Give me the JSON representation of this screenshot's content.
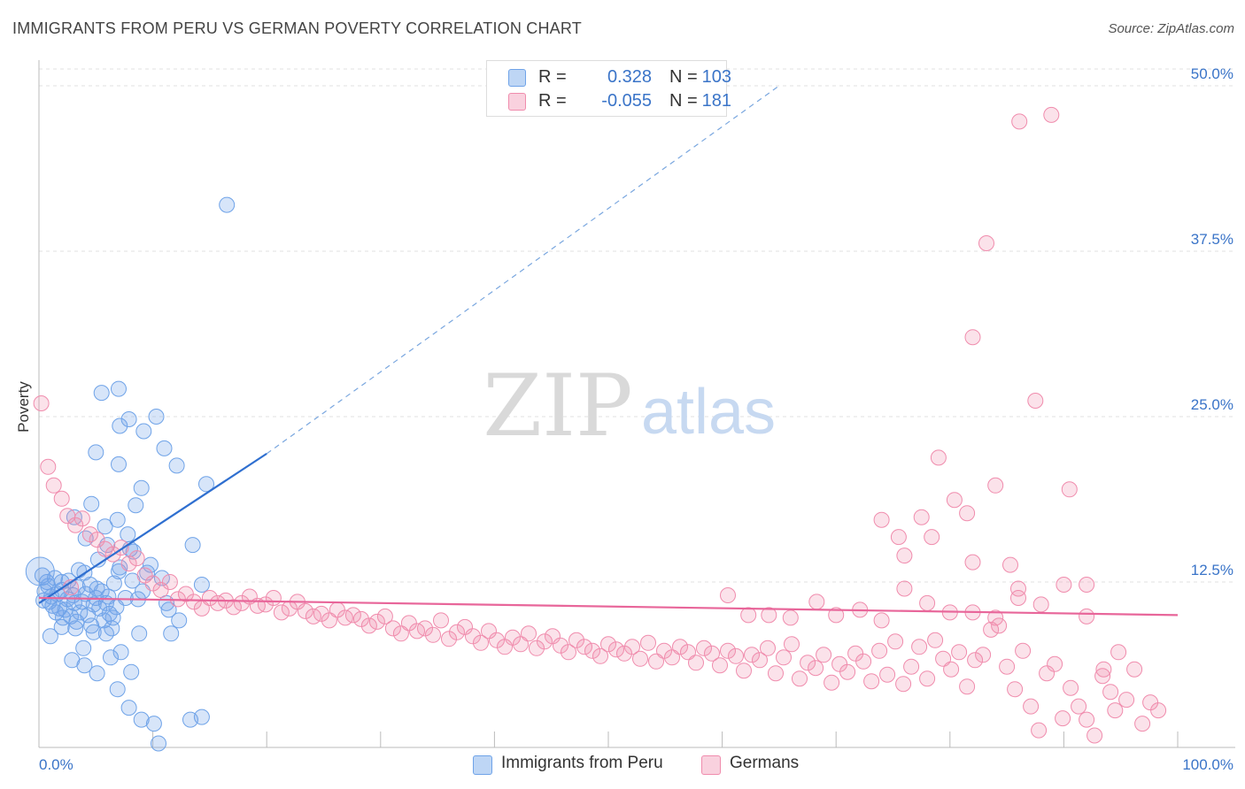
{
  "header": {
    "title": "IMMIGRANTS FROM PERU VS GERMAN POVERTY CORRELATION CHART",
    "source": "Source: ZipAtlas.com"
  },
  "watermark": {
    "zip": "ZIP",
    "atlas": "atlas"
  },
  "legend": {
    "r_label": "R =",
    "n_label": "N =",
    "rows": [
      {
        "name": "Immigrants from Peru",
        "r": "0.328",
        "n": "103",
        "color": "#6fa3e8"
      },
      {
        "name": "Germans",
        "r": "-0.055",
        "n": "181",
        "color": "#f08cad"
      }
    ]
  },
  "bottom_legend": [
    "Immigrants from Peru",
    "Germans"
  ],
  "chart_data": {
    "type": "scatter",
    "title": "IMMIGRANTS FROM PERU VS GERMAN POVERTY CORRELATION CHART",
    "xlabel": "",
    "ylabel": "Poverty",
    "xlim": [
      0,
      100
    ],
    "ylim": [
      0,
      50
    ],
    "x_tick_labels": [
      "0.0%",
      "100.0%"
    ],
    "y_ticks": [
      12.5,
      25.0,
      37.5,
      50.0
    ],
    "y_tick_labels": [
      "12.5%",
      "25.0%",
      "37.5%",
      "50.0%"
    ],
    "grid": true,
    "series": [
      {
        "name": "Immigrants from Peru",
        "color": "#6fa3e8",
        "fill": "rgba(111,163,232,0.28)",
        "stroke": "#6fa3e8",
        "trend": {
          "x": [
            0,
            20
          ],
          "y": [
            10.9,
            22.2
          ],
          "dashed_extension_to": [
            65,
            50
          ]
        },
        "points": [
          [
            0.3,
            13.0
          ],
          [
            0.5,
            11.8
          ],
          [
            0.7,
            12.5
          ],
          [
            0.9,
            11.0
          ],
          [
            1.1,
            11.4
          ],
          [
            1.2,
            10.7
          ],
          [
            1.4,
            12.8
          ],
          [
            1.6,
            11.6
          ],
          [
            1.8,
            10.5
          ],
          [
            2.0,
            11.9
          ],
          [
            2.1,
            9.8
          ],
          [
            2.3,
            10.4
          ],
          [
            2.5,
            11.2
          ],
          [
            2.6,
            12.6
          ],
          [
            2.8,
            9.9
          ],
          [
            3.0,
            11.5
          ],
          [
            3.1,
            10.9
          ],
          [
            3.3,
            9.5
          ],
          [
            3.4,
            12.1
          ],
          [
            3.6,
            10.2
          ],
          [
            3.8,
            11.0
          ],
          [
            4.0,
            13.2
          ],
          [
            4.1,
            11.6
          ],
          [
            4.3,
            10.0
          ],
          [
            4.5,
            12.3
          ],
          [
            4.6,
            9.2
          ],
          [
            4.8,
            10.8
          ],
          [
            5.0,
            11.3
          ],
          [
            5.1,
            12.0
          ],
          [
            5.3,
            10.5
          ],
          [
            5.5,
            11.8
          ],
          [
            5.7,
            9.6
          ],
          [
            5.9,
            10.9
          ],
          [
            6.1,
            11.4
          ],
          [
            6.2,
            10.1
          ],
          [
            6.4,
            9.0
          ],
          [
            6.6,
            12.4
          ],
          [
            6.8,
            10.6
          ],
          [
            7.0,
            13.3
          ],
          [
            1.0,
            8.4
          ],
          [
            2.0,
            12.5
          ],
          [
            3.5,
            13.4
          ],
          [
            5.2,
            14.2
          ],
          [
            6.0,
            15.3
          ],
          [
            7.1,
            13.6
          ],
          [
            8.3,
            14.8
          ],
          [
            4.1,
            15.8
          ],
          [
            5.8,
            16.7
          ],
          [
            6.9,
            17.2
          ],
          [
            7.8,
            16.1
          ],
          [
            4.6,
            18.4
          ],
          [
            8.5,
            18.3
          ],
          [
            3.1,
            17.4
          ],
          [
            5.0,
            22.3
          ],
          [
            7.1,
            24.3
          ],
          [
            7.9,
            24.8
          ],
          [
            9.2,
            23.9
          ],
          [
            10.3,
            25.0
          ],
          [
            11.0,
            22.6
          ],
          [
            12.1,
            21.3
          ],
          [
            9.0,
            19.6
          ],
          [
            7.0,
            21.4
          ],
          [
            8.0,
            15.0
          ],
          [
            9.8,
            13.8
          ],
          [
            10.8,
            12.8
          ],
          [
            5.5,
            26.8
          ],
          [
            7.0,
            27.1
          ],
          [
            13.5,
            15.3
          ],
          [
            14.7,
            19.9
          ],
          [
            14.3,
            12.3
          ],
          [
            16.5,
            41.0
          ],
          [
            11.2,
            10.9
          ],
          [
            11.4,
            10.4
          ],
          [
            12.3,
            9.6
          ],
          [
            11.6,
            8.6
          ],
          [
            8.8,
            8.6
          ],
          [
            7.2,
            7.2
          ],
          [
            4.8,
            8.7
          ],
          [
            3.2,
            9.0
          ],
          [
            2.9,
            6.6
          ],
          [
            4.0,
            6.2
          ],
          [
            5.1,
            5.6
          ],
          [
            6.9,
            4.4
          ],
          [
            7.9,
            3.0
          ],
          [
            9.0,
            2.1
          ],
          [
            10.1,
            1.8
          ],
          [
            10.5,
            0.3
          ],
          [
            13.3,
            2.1
          ],
          [
            14.3,
            2.3
          ],
          [
            8.1,
            5.7
          ],
          [
            8.7,
            11.2
          ],
          [
            7.6,
            11.3
          ],
          [
            9.1,
            11.8
          ],
          [
            6.5,
            9.8
          ],
          [
            5.9,
            8.6
          ],
          [
            2.0,
            9.1
          ],
          [
            1.5,
            10.2
          ],
          [
            0.8,
            12.2
          ],
          [
            3.9,
            7.5
          ],
          [
            6.3,
            6.8
          ],
          [
            8.2,
            12.6
          ],
          [
            9.5,
            13.2
          ],
          [
            0.4,
            11.1
          ]
        ]
      },
      {
        "name": "Germans",
        "color": "#f08cad",
        "fill": "rgba(240,140,173,0.25)",
        "stroke": "#f08cad",
        "trend": {
          "x": [
            0,
            100
          ],
          "y": [
            11.3,
            10.0
          ]
        },
        "points": [
          [
            0.2,
            26.0
          ],
          [
            0.8,
            21.2
          ],
          [
            1.3,
            19.8
          ],
          [
            2.0,
            18.8
          ],
          [
            2.5,
            17.5
          ],
          [
            3.2,
            16.8
          ],
          [
            3.8,
            17.3
          ],
          [
            4.5,
            16.1
          ],
          [
            5.1,
            15.7
          ],
          [
            5.8,
            15.0
          ],
          [
            6.5,
            14.6
          ],
          [
            7.2,
            15.1
          ],
          [
            7.9,
            13.9
          ],
          [
            8.6,
            14.3
          ],
          [
            9.3,
            13.0
          ],
          [
            10.0,
            12.4
          ],
          [
            10.7,
            11.9
          ],
          [
            11.5,
            12.5
          ],
          [
            12.2,
            11.2
          ],
          [
            12.9,
            11.6
          ],
          [
            13.6,
            11.0
          ],
          [
            14.3,
            10.5
          ],
          [
            15.0,
            11.3
          ],
          [
            15.7,
            10.9
          ],
          [
            16.4,
            11.1
          ],
          [
            17.1,
            10.6
          ],
          [
            17.8,
            10.9
          ],
          [
            18.5,
            11.4
          ],
          [
            19.2,
            10.7
          ],
          [
            19.9,
            10.8
          ],
          [
            20.6,
            11.3
          ],
          [
            21.3,
            10.2
          ],
          [
            22.0,
            10.5
          ],
          [
            22.7,
            11.0
          ],
          [
            23.4,
            10.3
          ],
          [
            24.1,
            9.9
          ],
          [
            24.8,
            10.1
          ],
          [
            25.5,
            9.6
          ],
          [
            26.2,
            10.4
          ],
          [
            26.9,
            9.8
          ],
          [
            27.6,
            10.0
          ],
          [
            28.3,
            9.7
          ],
          [
            29.0,
            9.2
          ],
          [
            29.7,
            9.5
          ],
          [
            30.4,
            9.9
          ],
          [
            31.1,
            9.0
          ],
          [
            31.8,
            8.6
          ],
          [
            32.5,
            9.4
          ],
          [
            33.2,
            8.8
          ],
          [
            33.9,
            9.0
          ],
          [
            34.6,
            8.5
          ],
          [
            35.3,
            9.6
          ],
          [
            36.0,
            8.2
          ],
          [
            36.7,
            8.7
          ],
          [
            37.4,
            9.1
          ],
          [
            38.1,
            8.4
          ],
          [
            38.8,
            7.9
          ],
          [
            39.5,
            8.8
          ],
          [
            40.2,
            8.1
          ],
          [
            40.9,
            7.6
          ],
          [
            41.6,
            8.3
          ],
          [
            42.3,
            7.8
          ],
          [
            43.0,
            8.6
          ],
          [
            43.7,
            7.5
          ],
          [
            44.4,
            8.0
          ],
          [
            45.1,
            8.4
          ],
          [
            45.8,
            7.7
          ],
          [
            46.5,
            7.2
          ],
          [
            47.2,
            8.1
          ],
          [
            47.9,
            7.6
          ],
          [
            48.6,
            7.3
          ],
          [
            49.3,
            6.9
          ],
          [
            50.0,
            7.8
          ],
          [
            50.7,
            7.4
          ],
          [
            51.4,
            7.1
          ],
          [
            52.1,
            7.6
          ],
          [
            52.8,
            6.7
          ],
          [
            53.5,
            7.9
          ],
          [
            54.2,
            6.5
          ],
          [
            54.9,
            7.3
          ],
          [
            55.6,
            6.8
          ],
          [
            56.3,
            7.6
          ],
          [
            57.0,
            7.2
          ],
          [
            57.7,
            6.4
          ],
          [
            58.4,
            7.5
          ],
          [
            59.1,
            7.1
          ],
          [
            59.8,
            6.2
          ],
          [
            60.5,
            7.3
          ],
          [
            61.2,
            6.9
          ],
          [
            61.9,
            5.8
          ],
          [
            62.6,
            7.0
          ],
          [
            63.3,
            6.6
          ],
          [
            64.0,
            7.5
          ],
          [
            64.7,
            5.6
          ],
          [
            65.4,
            6.8
          ],
          [
            66.1,
            7.8
          ],
          [
            66.8,
            5.2
          ],
          [
            67.5,
            6.4
          ],
          [
            68.2,
            6.0
          ],
          [
            68.9,
            7.0
          ],
          [
            69.6,
            4.9
          ],
          [
            70.3,
            6.3
          ],
          [
            71.0,
            5.7
          ],
          [
            71.7,
            7.1
          ],
          [
            72.4,
            6.5
          ],
          [
            73.1,
            5.0
          ],
          [
            73.8,
            7.3
          ],
          [
            74.5,
            5.5
          ],
          [
            75.2,
            8.0
          ],
          [
            75.9,
            4.8
          ],
          [
            76.6,
            6.1
          ],
          [
            77.3,
            7.6
          ],
          [
            78.0,
            5.2
          ],
          [
            78.7,
            8.1
          ],
          [
            79.4,
            6.7
          ],
          [
            80.1,
            5.9
          ],
          [
            80.8,
            7.2
          ],
          [
            81.5,
            4.6
          ],
          [
            82.2,
            6.6
          ],
          [
            82.9,
            7.0
          ],
          [
            83.6,
            8.9
          ],
          [
            84.3,
            9.2
          ],
          [
            85.0,
            6.1
          ],
          [
            85.7,
            4.4
          ],
          [
            86.4,
            7.3
          ],
          [
            87.1,
            3.1
          ],
          [
            87.8,
            1.3
          ],
          [
            88.5,
            5.6
          ],
          [
            89.2,
            6.3
          ],
          [
            89.9,
            2.2
          ],
          [
            90.6,
            4.5
          ],
          [
            91.3,
            3.1
          ],
          [
            92.0,
            2.1
          ],
          [
            92.7,
            0.9
          ],
          [
            93.4,
            5.4
          ],
          [
            94.1,
            4.2
          ],
          [
            94.8,
            7.2
          ],
          [
            95.5,
            3.6
          ],
          [
            96.2,
            5.9
          ],
          [
            96.9,
            1.8
          ],
          [
            97.6,
            3.4
          ],
          [
            98.3,
            2.8
          ],
          [
            60.5,
            11.5
          ],
          [
            62.3,
            10.0
          ],
          [
            64.1,
            10.0
          ],
          [
            66.0,
            9.8
          ],
          [
            68.3,
            11.0
          ],
          [
            70.0,
            10.0
          ],
          [
            72.1,
            10.4
          ],
          [
            74.0,
            9.6
          ],
          [
            76.0,
            12.0
          ],
          [
            78.0,
            10.9
          ],
          [
            80.0,
            10.2
          ],
          [
            82.0,
            10.2
          ],
          [
            84.0,
            9.8
          ],
          [
            86.0,
            11.3
          ],
          [
            88.0,
            10.8
          ],
          [
            90.0,
            12.3
          ],
          [
            92.0,
            9.9
          ],
          [
            74.0,
            17.2
          ],
          [
            75.5,
            15.9
          ],
          [
            76.0,
            14.5
          ],
          [
            77.5,
            17.4
          ],
          [
            78.4,
            15.9
          ],
          [
            79.0,
            21.9
          ],
          [
            80.4,
            18.7
          ],
          [
            81.5,
            17.7
          ],
          [
            82.0,
            14.0
          ],
          [
            84.0,
            19.8
          ],
          [
            85.3,
            13.8
          ],
          [
            86.0,
            12.0
          ],
          [
            87.5,
            26.2
          ],
          [
            90.5,
            19.5
          ],
          [
            92.0,
            12.3
          ],
          [
            93.5,
            5.9
          ],
          [
            94.5,
            2.8
          ],
          [
            82.0,
            31.0
          ],
          [
            83.2,
            38.1
          ],
          [
            86.1,
            47.3
          ],
          [
            88.9,
            47.8
          ],
          [
            2.8,
            12.1
          ]
        ]
      }
    ]
  }
}
